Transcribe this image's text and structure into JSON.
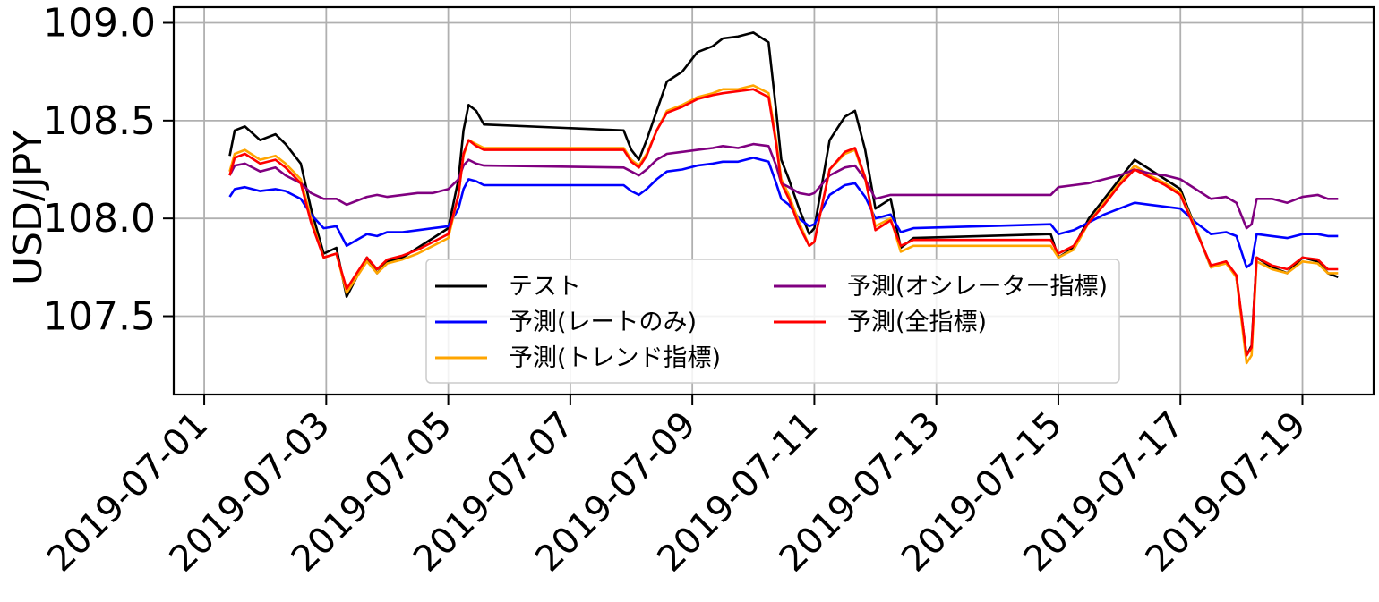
{
  "chart_data": {
    "type": "line",
    "xlabel": "",
    "ylabel": "USD/JPY",
    "ylim": [
      107.1,
      109.08
    ],
    "yticks": [
      107.5,
      108.0,
      108.5,
      109.0
    ],
    "ytick_labels": [
      "107.5",
      "108.0",
      "108.5",
      "109.0"
    ],
    "xlim": [
      "2019-06-30T12:00",
      "2019-07-20T04:00"
    ],
    "xticks": [
      "2019-07-01",
      "2019-07-03",
      "2019-07-05",
      "2019-07-07",
      "2019-07-09",
      "2019-07-11",
      "2019-07-13",
      "2019-07-15",
      "2019-07-17",
      "2019-07-19"
    ],
    "grid": true,
    "legend_position": "lower center",
    "series": [
      {
        "name": "テスト",
        "color": "#000000",
        "x": [
          "2019-07-01T10:00",
          "2019-07-01T12:00",
          "2019-07-01T16:00",
          "2019-07-01T22:00",
          "2019-07-02T04:00",
          "2019-07-02T08:00",
          "2019-07-02T14:00",
          "2019-07-02T18:00",
          "2019-07-02T23:00",
          "2019-07-03T04:00",
          "2019-07-03T08:00",
          "2019-07-03T12:00",
          "2019-07-03T16:00",
          "2019-07-03T20:00",
          "2019-07-04T00:00",
          "2019-07-04T06:00",
          "2019-07-04T12:00",
          "2019-07-04T18:00",
          "2019-07-05T00:00",
          "2019-07-05T04:00",
          "2019-07-05T06:00",
          "2019-07-05T08:00",
          "2019-07-05T11:00",
          "2019-07-05T14:00",
          "2019-07-07T21:00",
          "2019-07-08T00:00",
          "2019-07-08T03:00",
          "2019-07-08T06:00",
          "2019-07-08T10:00",
          "2019-07-08T14:00",
          "2019-07-08T20:00",
          "2019-07-09T02:00",
          "2019-07-09T08:00",
          "2019-07-09T12:00",
          "2019-07-09T18:00",
          "2019-07-10T00:00",
          "2019-07-10T06:00",
          "2019-07-10T09:00",
          "2019-07-10T11:00",
          "2019-07-10T14:00",
          "2019-07-10T18:00",
          "2019-07-10T22:00",
          "2019-07-11T00:00",
          "2019-07-11T06:00",
          "2019-07-11T12:00",
          "2019-07-11T16:00",
          "2019-07-11T20:00",
          "2019-07-12T00:00",
          "2019-07-12T06:00",
          "2019-07-12T10:00",
          "2019-07-12T15:00",
          "2019-07-14T21:00",
          "2019-07-15T00:00",
          "2019-07-15T06:00",
          "2019-07-15T12:00",
          "2019-07-15T18:00",
          "2019-07-16T00:00",
          "2019-07-16T06:00",
          "2019-07-16T12:00",
          "2019-07-16T18:00",
          "2019-07-17T00:00",
          "2019-07-17T06:00",
          "2019-07-17T12:00",
          "2019-07-17T18:00",
          "2019-07-17T22:00",
          "2019-07-18T02:00",
          "2019-07-18T04:00",
          "2019-07-18T06:00",
          "2019-07-18T12:00",
          "2019-07-18T18:00",
          "2019-07-19T00:00",
          "2019-07-19T06:00",
          "2019-07-19T10:00",
          "2019-07-19T14:00"
        ],
        "y": [
          108.32,
          108.45,
          108.47,
          108.4,
          108.43,
          108.38,
          108.28,
          108.05,
          107.82,
          107.85,
          107.6,
          107.7,
          107.8,
          107.72,
          107.78,
          107.8,
          107.85,
          107.9,
          107.95,
          108.2,
          108.45,
          108.58,
          108.55,
          108.48,
          108.45,
          108.35,
          108.3,
          108.4,
          108.55,
          108.7,
          108.75,
          108.85,
          108.88,
          108.92,
          108.93,
          108.95,
          108.9,
          108.55,
          108.3,
          108.2,
          108.05,
          107.92,
          107.95,
          108.4,
          108.52,
          108.55,
          108.35,
          108.05,
          108.1,
          107.85,
          107.9,
          107.92,
          107.8,
          107.85,
          108.0,
          108.1,
          108.2,
          108.3,
          108.25,
          108.2,
          108.15,
          107.95,
          107.75,
          107.78,
          107.7,
          107.3,
          107.35,
          107.8,
          107.75,
          107.72,
          107.8,
          107.78,
          107.72,
          107.7
        ]
      },
      {
        "name": "予測(レートのみ)",
        "color": "#0000ff",
        "x": [
          "2019-07-01T10:00",
          "2019-07-01T12:00",
          "2019-07-01T16:00",
          "2019-07-01T22:00",
          "2019-07-02T04:00",
          "2019-07-02T08:00",
          "2019-07-02T14:00",
          "2019-07-02T18:00",
          "2019-07-02T23:00",
          "2019-07-03T04:00",
          "2019-07-03T08:00",
          "2019-07-03T12:00",
          "2019-07-03T16:00",
          "2019-07-03T20:00",
          "2019-07-04T00:00",
          "2019-07-04T06:00",
          "2019-07-04T12:00",
          "2019-07-04T18:00",
          "2019-07-05T00:00",
          "2019-07-05T04:00",
          "2019-07-05T06:00",
          "2019-07-05T08:00",
          "2019-07-05T11:00",
          "2019-07-05T14:00",
          "2019-07-07T21:00",
          "2019-07-08T00:00",
          "2019-07-08T03:00",
          "2019-07-08T06:00",
          "2019-07-08T10:00",
          "2019-07-08T14:00",
          "2019-07-08T20:00",
          "2019-07-09T02:00",
          "2019-07-09T08:00",
          "2019-07-09T12:00",
          "2019-07-09T18:00",
          "2019-07-10T00:00",
          "2019-07-10T06:00",
          "2019-07-10T09:00",
          "2019-07-10T11:00",
          "2019-07-10T14:00",
          "2019-07-10T18:00",
          "2019-07-10T22:00",
          "2019-07-11T00:00",
          "2019-07-11T06:00",
          "2019-07-11T12:00",
          "2019-07-11T16:00",
          "2019-07-11T20:00",
          "2019-07-12T00:00",
          "2019-07-12T06:00",
          "2019-07-12T10:00",
          "2019-07-12T15:00",
          "2019-07-14T21:00",
          "2019-07-15T00:00",
          "2019-07-15T06:00",
          "2019-07-15T12:00",
          "2019-07-15T18:00",
          "2019-07-16T00:00",
          "2019-07-16T06:00",
          "2019-07-16T12:00",
          "2019-07-16T18:00",
          "2019-07-17T00:00",
          "2019-07-17T06:00",
          "2019-07-17T12:00",
          "2019-07-17T18:00",
          "2019-07-17T22:00",
          "2019-07-18T02:00",
          "2019-07-18T04:00",
          "2019-07-18T06:00",
          "2019-07-18T12:00",
          "2019-07-18T18:00",
          "2019-07-19T00:00",
          "2019-07-19T06:00",
          "2019-07-19T10:00",
          "2019-07-19T14:00"
        ],
        "y": [
          108.11,
          108.15,
          108.16,
          108.14,
          108.15,
          108.14,
          108.1,
          108.02,
          107.95,
          107.96,
          107.86,
          107.89,
          107.92,
          107.91,
          107.93,
          107.93,
          107.94,
          107.95,
          107.96,
          108.05,
          108.15,
          108.2,
          108.19,
          108.17,
          108.17,
          108.14,
          108.12,
          108.15,
          108.2,
          108.24,
          108.25,
          108.27,
          108.28,
          108.29,
          108.29,
          108.31,
          108.29,
          108.18,
          108.1,
          108.07,
          108.0,
          107.96,
          107.97,
          108.12,
          108.17,
          108.18,
          108.11,
          108.0,
          108.02,
          107.93,
          107.95,
          107.97,
          107.92,
          107.94,
          107.98,
          108.02,
          108.05,
          108.08,
          108.07,
          108.06,
          108.05,
          107.98,
          107.92,
          107.93,
          107.91,
          107.75,
          107.77,
          107.92,
          107.91,
          107.9,
          107.92,
          107.92,
          107.91,
          107.91
        ]
      },
      {
        "name": "予測(トレンド指標)",
        "color": "#ffa500",
        "x": [
          "2019-07-01T10:00",
          "2019-07-01T12:00",
          "2019-07-01T16:00",
          "2019-07-01T22:00",
          "2019-07-02T04:00",
          "2019-07-02T08:00",
          "2019-07-02T14:00",
          "2019-07-02T18:00",
          "2019-07-02T23:00",
          "2019-07-03T04:00",
          "2019-07-03T08:00",
          "2019-07-03T12:00",
          "2019-07-03T16:00",
          "2019-07-03T20:00",
          "2019-07-04T00:00",
          "2019-07-04T06:00",
          "2019-07-04T12:00",
          "2019-07-04T18:00",
          "2019-07-05T00:00",
          "2019-07-05T04:00",
          "2019-07-05T06:00",
          "2019-07-05T08:00",
          "2019-07-05T11:00",
          "2019-07-05T14:00",
          "2019-07-07T21:00",
          "2019-07-08T00:00",
          "2019-07-08T03:00",
          "2019-07-08T06:00",
          "2019-07-08T10:00",
          "2019-07-08T14:00",
          "2019-07-08T20:00",
          "2019-07-09T02:00",
          "2019-07-09T08:00",
          "2019-07-09T12:00",
          "2019-07-09T18:00",
          "2019-07-10T00:00",
          "2019-07-10T06:00",
          "2019-07-10T09:00",
          "2019-07-10T11:00",
          "2019-07-10T14:00",
          "2019-07-10T18:00",
          "2019-07-10T22:00",
          "2019-07-11T00:00",
          "2019-07-11T06:00",
          "2019-07-11T12:00",
          "2019-07-11T16:00",
          "2019-07-11T20:00",
          "2019-07-12T00:00",
          "2019-07-12T06:00",
          "2019-07-12T10:00",
          "2019-07-12T15:00",
          "2019-07-14T21:00",
          "2019-07-15T00:00",
          "2019-07-15T06:00",
          "2019-07-15T12:00",
          "2019-07-15T18:00",
          "2019-07-16T00:00",
          "2019-07-16T06:00",
          "2019-07-16T12:00",
          "2019-07-16T18:00",
          "2019-07-17T00:00",
          "2019-07-17T06:00",
          "2019-07-17T12:00",
          "2019-07-17T18:00",
          "2019-07-17T22:00",
          "2019-07-18T02:00",
          "2019-07-18T04:00",
          "2019-07-18T06:00",
          "2019-07-18T12:00",
          "2019-07-18T18:00",
          "2019-07-19T00:00",
          "2019-07-19T06:00",
          "2019-07-19T10:00",
          "2019-07-19T14:00"
        ],
        "y": [
          108.24,
          108.33,
          108.35,
          108.3,
          108.32,
          108.28,
          108.2,
          108.0,
          107.8,
          107.82,
          107.62,
          107.7,
          107.78,
          107.72,
          107.77,
          107.79,
          107.82,
          107.86,
          107.9,
          108.12,
          108.32,
          108.4,
          108.38,
          108.36,
          108.36,
          108.3,
          108.27,
          108.33,
          108.45,
          108.55,
          108.58,
          108.62,
          108.64,
          108.66,
          108.66,
          108.68,
          108.64,
          108.4,
          108.2,
          108.12,
          107.98,
          107.86,
          107.88,
          108.25,
          108.33,
          108.35,
          108.2,
          107.96,
          108.0,
          107.83,
          107.86,
          107.86,
          107.8,
          107.84,
          107.98,
          108.08,
          108.18,
          108.27,
          108.22,
          108.18,
          108.13,
          107.95,
          107.75,
          107.77,
          107.7,
          107.26,
          107.3,
          107.78,
          107.74,
          107.72,
          107.78,
          107.77,
          107.72,
          107.72
        ]
      },
      {
        "name": "予測(オシレーター指標)",
        "color": "#800080",
        "x": [
          "2019-07-01T10:00",
          "2019-07-01T12:00",
          "2019-07-01T16:00",
          "2019-07-01T22:00",
          "2019-07-02T04:00",
          "2019-07-02T08:00",
          "2019-07-02T14:00",
          "2019-07-02T18:00",
          "2019-07-02T23:00",
          "2019-07-03T04:00",
          "2019-07-03T08:00",
          "2019-07-03T12:00",
          "2019-07-03T16:00",
          "2019-07-03T20:00",
          "2019-07-04T00:00",
          "2019-07-04T06:00",
          "2019-07-04T12:00",
          "2019-07-04T18:00",
          "2019-07-05T00:00",
          "2019-07-05T04:00",
          "2019-07-05T06:00",
          "2019-07-05T08:00",
          "2019-07-05T11:00",
          "2019-07-05T14:00",
          "2019-07-07T21:00",
          "2019-07-08T00:00",
          "2019-07-08T03:00",
          "2019-07-08T06:00",
          "2019-07-08T10:00",
          "2019-07-08T14:00",
          "2019-07-08T20:00",
          "2019-07-09T02:00",
          "2019-07-09T08:00",
          "2019-07-09T12:00",
          "2019-07-09T18:00",
          "2019-07-10T00:00",
          "2019-07-10T06:00",
          "2019-07-10T09:00",
          "2019-07-10T11:00",
          "2019-07-10T14:00",
          "2019-07-10T18:00",
          "2019-07-10T22:00",
          "2019-07-11T00:00",
          "2019-07-11T06:00",
          "2019-07-11T12:00",
          "2019-07-11T16:00",
          "2019-07-11T20:00",
          "2019-07-12T00:00",
          "2019-07-12T06:00",
          "2019-07-12T10:00",
          "2019-07-12T15:00",
          "2019-07-14T21:00",
          "2019-07-15T00:00",
          "2019-07-15T06:00",
          "2019-07-15T12:00",
          "2019-07-15T18:00",
          "2019-07-16T00:00",
          "2019-07-16T06:00",
          "2019-07-16T12:00",
          "2019-07-16T18:00",
          "2019-07-17T00:00",
          "2019-07-17T06:00",
          "2019-07-17T12:00",
          "2019-07-17T18:00",
          "2019-07-17T22:00",
          "2019-07-18T02:00",
          "2019-07-18T04:00",
          "2019-07-18T06:00",
          "2019-07-18T12:00",
          "2019-07-18T18:00",
          "2019-07-19T00:00",
          "2019-07-19T06:00",
          "2019-07-19T10:00",
          "2019-07-19T14:00"
        ],
        "y": [
          108.22,
          108.27,
          108.28,
          108.24,
          108.26,
          108.22,
          108.18,
          108.13,
          108.1,
          108.1,
          108.07,
          108.09,
          108.11,
          108.12,
          108.11,
          108.12,
          108.13,
          108.13,
          108.15,
          108.2,
          108.27,
          108.3,
          108.28,
          108.27,
          108.26,
          108.24,
          108.22,
          108.25,
          108.3,
          108.33,
          108.34,
          108.35,
          108.36,
          108.37,
          108.36,
          108.38,
          108.37,
          108.27,
          108.18,
          108.16,
          108.13,
          108.12,
          108.13,
          108.22,
          108.26,
          108.27,
          108.2,
          108.1,
          108.12,
          108.12,
          108.12,
          108.12,
          108.16,
          108.17,
          108.18,
          108.2,
          108.22,
          108.25,
          108.23,
          108.22,
          108.2,
          108.15,
          108.1,
          108.11,
          108.08,
          107.95,
          107.97,
          108.1,
          108.1,
          108.08,
          108.11,
          108.12,
          108.1,
          108.1
        ]
      },
      {
        "name": "予測(全指標)",
        "color": "#ff0000",
        "x": [
          "2019-07-01T10:00",
          "2019-07-01T12:00",
          "2019-07-01T16:00",
          "2019-07-01T22:00",
          "2019-07-02T04:00",
          "2019-07-02T08:00",
          "2019-07-02T14:00",
          "2019-07-02T18:00",
          "2019-07-02T23:00",
          "2019-07-03T04:00",
          "2019-07-03T08:00",
          "2019-07-03T12:00",
          "2019-07-03T16:00",
          "2019-07-03T20:00",
          "2019-07-04T00:00",
          "2019-07-04T06:00",
          "2019-07-04T12:00",
          "2019-07-04T18:00",
          "2019-07-05T00:00",
          "2019-07-05T04:00",
          "2019-07-05T06:00",
          "2019-07-05T08:00",
          "2019-07-05T11:00",
          "2019-07-05T14:00",
          "2019-07-07T21:00",
          "2019-07-08T00:00",
          "2019-07-08T03:00",
          "2019-07-08T06:00",
          "2019-07-08T10:00",
          "2019-07-08T14:00",
          "2019-07-08T20:00",
          "2019-07-09T02:00",
          "2019-07-09T08:00",
          "2019-07-09T12:00",
          "2019-07-09T18:00",
          "2019-07-10T00:00",
          "2019-07-10T06:00",
          "2019-07-10T09:00",
          "2019-07-10T11:00",
          "2019-07-10T14:00",
          "2019-07-10T18:00",
          "2019-07-10T22:00",
          "2019-07-11T00:00",
          "2019-07-11T06:00",
          "2019-07-11T12:00",
          "2019-07-11T16:00",
          "2019-07-11T20:00",
          "2019-07-12T00:00",
          "2019-07-12T06:00",
          "2019-07-12T10:00",
          "2019-07-12T15:00",
          "2019-07-14T21:00",
          "2019-07-15T00:00",
          "2019-07-15T06:00",
          "2019-07-15T12:00",
          "2019-07-15T18:00",
          "2019-07-16T00:00",
          "2019-07-16T06:00",
          "2019-07-16T12:00",
          "2019-07-16T18:00",
          "2019-07-17T00:00",
          "2019-07-17T06:00",
          "2019-07-17T12:00",
          "2019-07-17T18:00",
          "2019-07-17T22:00",
          "2019-07-18T02:00",
          "2019-07-18T04:00",
          "2019-07-18T06:00",
          "2019-07-18T12:00",
          "2019-07-18T18:00",
          "2019-07-19T00:00",
          "2019-07-19T06:00",
          "2019-07-19T10:00",
          "2019-07-19T14:00"
        ],
        "y": [
          108.22,
          108.31,
          108.33,
          108.28,
          108.3,
          108.26,
          108.18,
          107.98,
          107.8,
          107.82,
          107.64,
          107.72,
          107.8,
          107.74,
          107.79,
          107.81,
          107.84,
          107.88,
          107.92,
          108.12,
          108.33,
          108.4,
          108.37,
          108.35,
          108.35,
          108.29,
          108.26,
          108.32,
          108.45,
          108.54,
          108.57,
          108.61,
          108.63,
          108.64,
          108.65,
          108.66,
          108.62,
          108.38,
          108.18,
          108.1,
          107.96,
          107.86,
          107.88,
          108.25,
          108.34,
          108.36,
          108.21,
          107.94,
          107.99,
          107.86,
          107.89,
          107.89,
          107.82,
          107.86,
          107.98,
          108.07,
          108.17,
          108.25,
          108.21,
          108.17,
          108.12,
          107.94,
          107.76,
          107.78,
          107.71,
          107.3,
          107.34,
          107.8,
          107.76,
          107.74,
          107.8,
          107.79,
          107.74,
          107.74
        ]
      }
    ]
  }
}
